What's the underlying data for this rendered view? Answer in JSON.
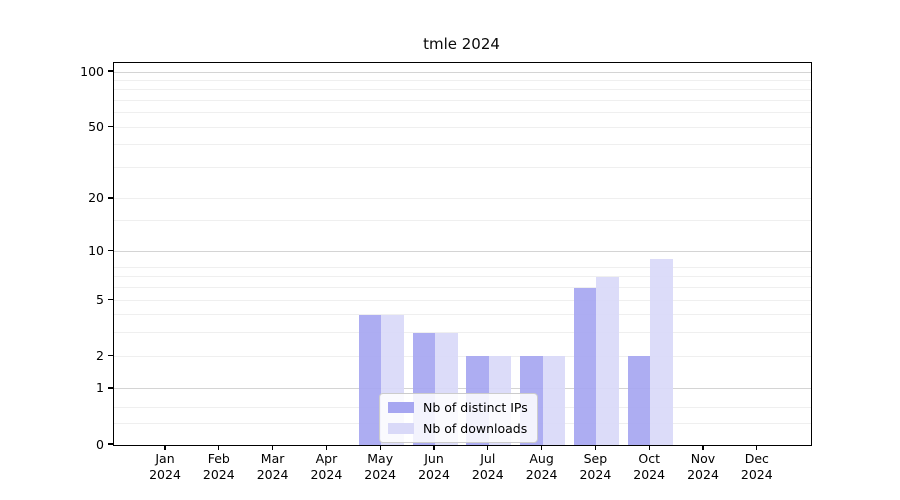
{
  "chart_data": {
    "type": "bar",
    "title": "tmle 2024",
    "categories": [
      "Jan",
      "Feb",
      "Mar",
      "Apr",
      "May",
      "Jun",
      "Jul",
      "Aug",
      "Sep",
      "Oct",
      "Nov",
      "Dec"
    ],
    "year_label": "2024",
    "series": [
      {
        "name": "Nb of distinct IPs",
        "color": "#a6a6f1",
        "values": [
          0,
          0,
          0,
          0,
          4,
          3,
          2,
          2,
          6,
          2,
          0,
          0
        ]
      },
      {
        "name": "Nb of downloads",
        "color": "#d9d9f8",
        "values": [
          0,
          0,
          0,
          0,
          4,
          3,
          2,
          2,
          7,
          9,
          0,
          0
        ]
      }
    ],
    "yscale": "log1p",
    "yticks": [
      0,
      1,
      2,
      5,
      10,
      20,
      50,
      100
    ],
    "ylim": [
      0,
      112
    ],
    "grid": true,
    "legend_position": "lower center",
    "axis_color": "#000000",
    "major_grid_color": "#d4d4d4",
    "minor_grid_color": "#efefef"
  }
}
